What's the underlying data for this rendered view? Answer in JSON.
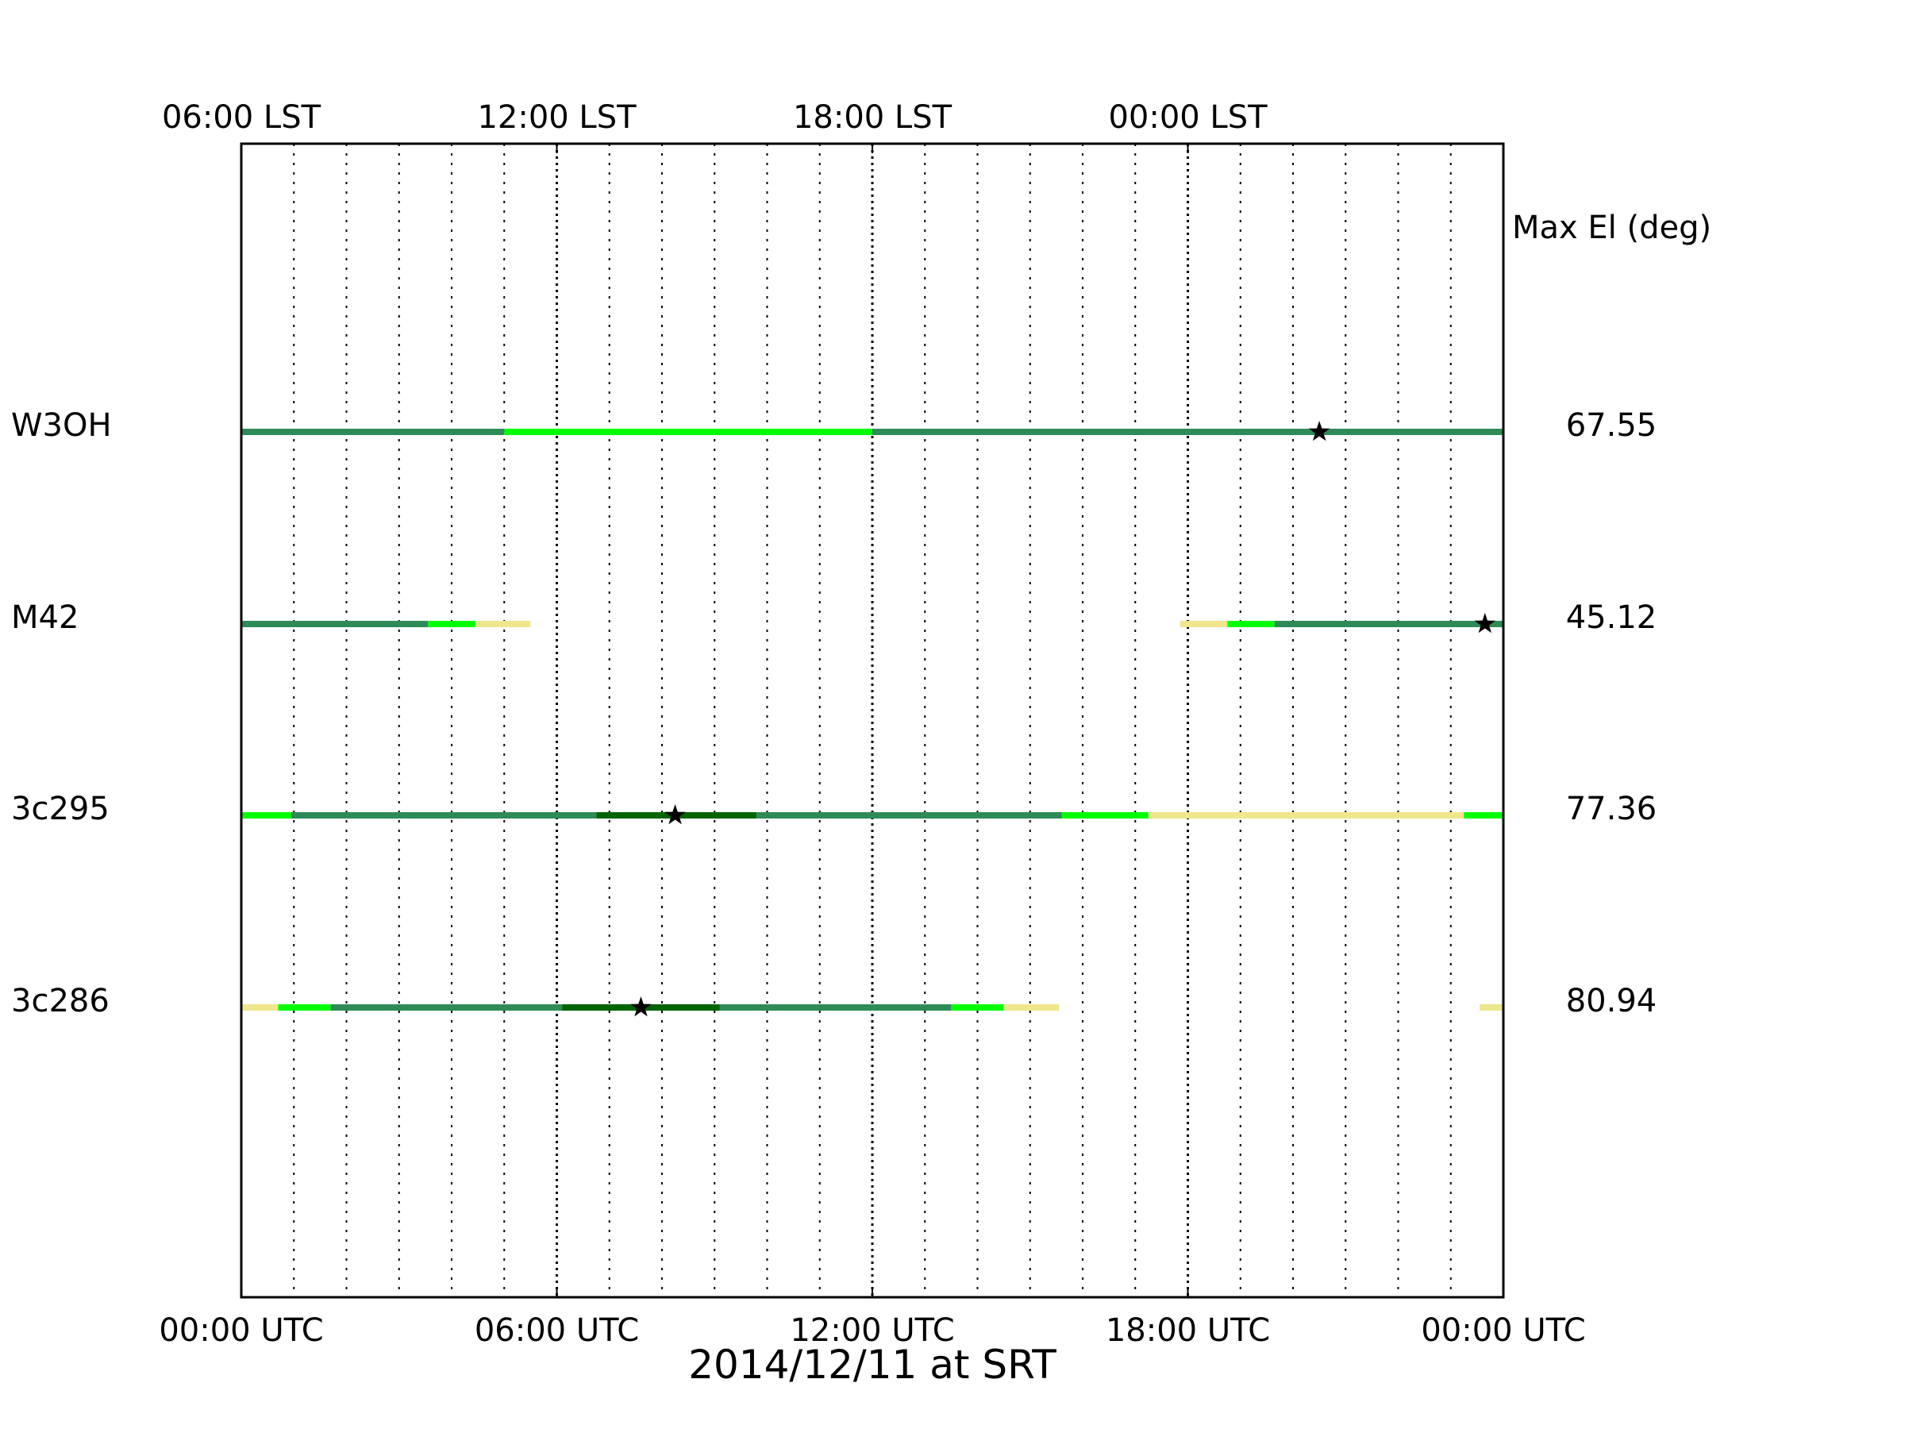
{
  "chart_data": {
    "type": "table",
    "title": "2014/12/11 at SRT",
    "x_axis": {
      "unit": "UTC hours",
      "range": [
        0,
        24
      ],
      "bottom_tick_labels": [
        {
          "hour": 0,
          "label": "00:00 UTC"
        },
        {
          "hour": 6,
          "label": "06:00 UTC"
        },
        {
          "hour": 12,
          "label": "12:00 UTC"
        },
        {
          "hour": 18,
          "label": "18:00 UTC"
        },
        {
          "hour": 24,
          "label": "00:00 UTC"
        }
      ],
      "top_tick_labels": [
        {
          "hour": 0,
          "label": "06:00 LST"
        },
        {
          "hour": 6,
          "label": "12:00 LST"
        },
        {
          "hour": 12,
          "label": "18:00 LST"
        },
        {
          "hour": 18,
          "label": "00:00 LST"
        }
      ],
      "minor_grid_hours": [
        1,
        2,
        3,
        4,
        5,
        7,
        8,
        9,
        10,
        11,
        13,
        14,
        15,
        16,
        17,
        19,
        20,
        21,
        22,
        23
      ],
      "major_grid_hours": [
        0,
        6,
        12,
        18
      ],
      "grid": true
    },
    "right_header": "Max El (deg)",
    "level_colors": {
      "pale": "#f0e68c",
      "light": "#00ff00",
      "medium": "#2e8b57",
      "dark": "#006400"
    },
    "sources": [
      {
        "name": "W3OH",
        "max_el": "67.55",
        "transit_hour": 20.5,
        "segments": [
          {
            "start": 0,
            "end": 5.0,
            "level": "medium"
          },
          {
            "start": 5.0,
            "end": 12.0,
            "level": "light"
          },
          {
            "start": 12.0,
            "end": 24,
            "level": "medium"
          }
        ]
      },
      {
        "name": "M42",
        "max_el": "45.12",
        "transit_hour": 23.65,
        "segments": [
          {
            "start": 0,
            "end": 3.55,
            "level": "medium"
          },
          {
            "start": 3.55,
            "end": 4.45,
            "level": "light"
          },
          {
            "start": 4.45,
            "end": 5.5,
            "level": "pale"
          },
          {
            "start": 17.85,
            "end": 18.75,
            "level": "pale"
          },
          {
            "start": 18.75,
            "end": 19.65,
            "level": "light"
          },
          {
            "start": 19.65,
            "end": 24,
            "level": "medium"
          }
        ]
      },
      {
        "name": "3c295",
        "max_el": "77.36",
        "transit_hour": 8.25,
        "segments": [
          {
            "start": 0,
            "end": 0.95,
            "level": "light"
          },
          {
            "start": 0.95,
            "end": 6.75,
            "level": "medium"
          },
          {
            "start": 6.75,
            "end": 9.8,
            "level": "dark"
          },
          {
            "start": 9.8,
            "end": 15.6,
            "level": "medium"
          },
          {
            "start": 15.6,
            "end": 17.25,
            "level": "light"
          },
          {
            "start": 17.25,
            "end": 23.25,
            "level": "pale"
          },
          {
            "start": 23.25,
            "end": 24,
            "level": "light"
          }
        ]
      },
      {
        "name": "3c286",
        "max_el": "80.94",
        "transit_hour": 7.6,
        "segments": [
          {
            "start": 0,
            "end": 0.7,
            "level": "pale"
          },
          {
            "start": 0.7,
            "end": 1.7,
            "level": "light"
          },
          {
            "start": 1.7,
            "end": 6.1,
            "level": "medium"
          },
          {
            "start": 6.1,
            "end": 9.1,
            "level": "dark"
          },
          {
            "start": 9.1,
            "end": 13.5,
            "level": "medium"
          },
          {
            "start": 13.5,
            "end": 14.5,
            "level": "light"
          },
          {
            "start": 14.5,
            "end": 15.55,
            "level": "pale"
          },
          {
            "start": 23.55,
            "end": 24,
            "level": "pale"
          }
        ]
      }
    ]
  }
}
